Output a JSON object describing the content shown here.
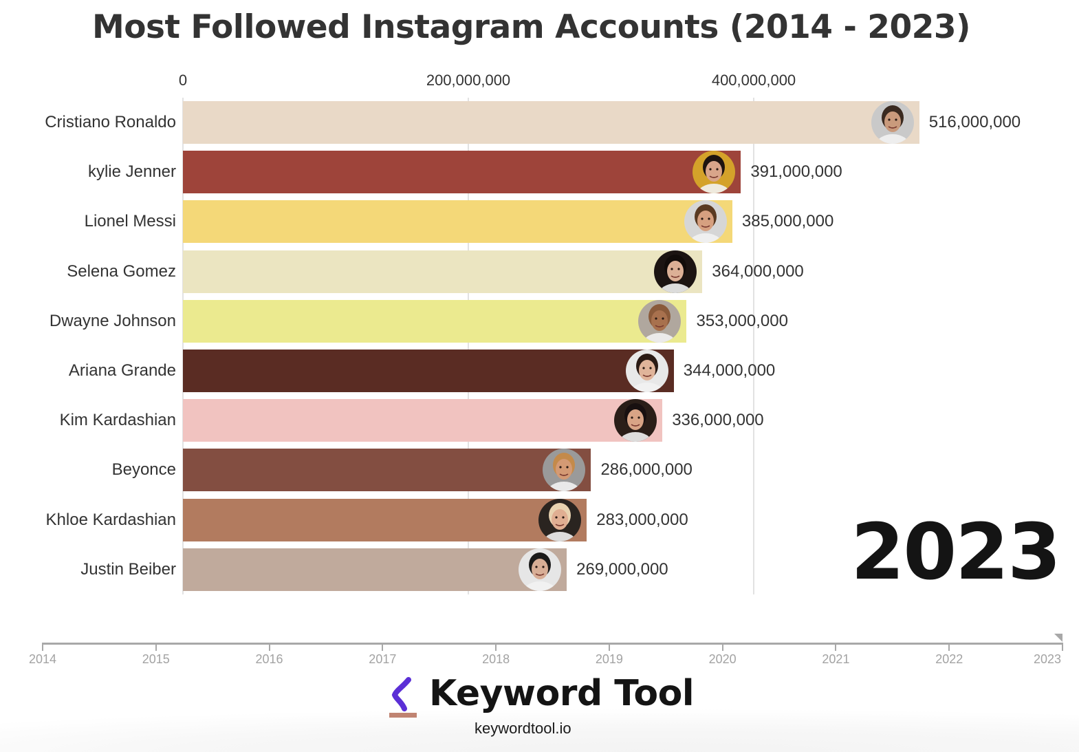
{
  "title": "Most Followed Instagram Accounts (2014 - 2023)",
  "axis": {
    "ticks": [
      {
        "label": "0",
        "value": 0
      },
      {
        "label": "200,000,000",
        "value": 200000000
      },
      {
        "label": "400,000,000",
        "value": 400000000
      }
    ]
  },
  "current_year": "2023",
  "rows": [
    {
      "name": "Cristiano Ronaldo",
      "value_label": "516,000,000",
      "value": 516000000,
      "color": "#e9d9c7",
      "avatar": "cristiano-ronaldo-avatar",
      "avatar_bg": "#c9c9c9",
      "skin": "#c99a7c",
      "hair": "#3a2a20"
    },
    {
      "name": "kylie Jenner",
      "value_label": "391,000,000",
      "value": 391000000,
      "color": "#9e443a",
      "avatar": "kylie-jenner-avatar",
      "avatar_bg": "#d4a22a",
      "skin": "#d9a58a",
      "hair": "#1e1410"
    },
    {
      "name": "Lionel Messi",
      "value_label": "385,000,000",
      "value": 385000000,
      "color": "#f4d878",
      "avatar": "lionel-messi-avatar",
      "avatar_bg": "#d6d6d6",
      "skin": "#d6a080",
      "hair": "#5a3a22"
    },
    {
      "name": "Selena Gomez",
      "value_label": "364,000,000",
      "value": 364000000,
      "color": "#ebe5c1",
      "avatar": "selena-gomez-avatar",
      "avatar_bg": "#1c1412",
      "skin": "#dcb096",
      "hair": "#120c0a"
    },
    {
      "name": "Dwayne Johnson",
      "value_label": "353,000,000",
      "value": 353000000,
      "color": "#ebea8f",
      "avatar": "dwayne-johnson-avatar",
      "avatar_bg": "#b0a79e",
      "skin": "#a8714e",
      "hair": "#8a5a3a"
    },
    {
      "name": "Ariana Grande",
      "value_label": "344,000,000",
      "value": 344000000,
      "color": "#5a2c23",
      "avatar": "ariana-grande-avatar",
      "avatar_bg": "#e8e8e8",
      "skin": "#e0b49a",
      "hair": "#2a1a14"
    },
    {
      "name": "Kim Kardashian",
      "value_label": "336,000,000",
      "value": 336000000,
      "color": "#f1c3c0",
      "avatar": "kim-kardashian-avatar",
      "avatar_bg": "#2a1e18",
      "skin": "#d8a486",
      "hair": "#181010"
    },
    {
      "name": "Beyonce",
      "value_label": "286,000,000",
      "value": 286000000,
      "color": "#834e41",
      "avatar": "beyonce-avatar",
      "avatar_bg": "#9a9a9a",
      "skin": "#d49a74",
      "hair": "#c48a4a"
    },
    {
      "name": "Khloe Kardashian",
      "value_label": "283,000,000",
      "value": 283000000,
      "color": "#b27b5f",
      "avatar": "khloe-kardashian-avatar",
      "avatar_bg": "#2a2420",
      "skin": "#e0ae92",
      "hair": "#e8d2b0"
    },
    {
      "name": "Justin Beiber",
      "value_label": "269,000,000",
      "value": 269000000,
      "color": "#c0aa9c",
      "avatar": "justin-bieber-avatar",
      "avatar_bg": "#e6e6e6",
      "skin": "#d8ae96",
      "hair": "#1a1a1a"
    }
  ],
  "timeline": {
    "years": [
      "2014",
      "2015",
      "2016",
      "2017",
      "2018",
      "2019",
      "2020",
      "2021",
      "2022",
      "2023"
    ],
    "current": "2023"
  },
  "branding": {
    "name": "Keyword Tool",
    "url": "keywordtool.io",
    "mark_color": "#5b2fd6",
    "underline_color": "#c08472"
  },
  "chart_data": {
    "type": "bar",
    "orientation": "horizontal",
    "title": "Most Followed Instagram Accounts (2014 - 2023)",
    "subtitle": "2023",
    "categories": [
      "Cristiano Ronaldo",
      "kylie Jenner",
      "Lionel Messi",
      "Selena Gomez",
      "Dwayne Johnson",
      "Ariana Grande",
      "Kim Kardashian",
      "Beyonce",
      "Khloe Kardashian",
      "Justin Beiber"
    ],
    "values": [
      516000000,
      391000000,
      385000000,
      364000000,
      353000000,
      344000000,
      336000000,
      286000000,
      283000000,
      269000000
    ],
    "colors": [
      "#e9d9c7",
      "#9e443a",
      "#f4d878",
      "#ebe5c1",
      "#ebea8f",
      "#5a2c23",
      "#f1c3c0",
      "#834e41",
      "#b27b5f",
      "#c0aa9c"
    ],
    "xlabel": "",
    "ylabel": "",
    "x_ticks": [
      "0",
      "200,000,000",
      "400,000,000"
    ],
    "xlim": [
      0,
      540000000
    ],
    "grid": true,
    "axis_position": "top",
    "legend": "none",
    "timeline_years": [
      "2014",
      "2015",
      "2016",
      "2017",
      "2018",
      "2019",
      "2020",
      "2021",
      "2022",
      "2023"
    ],
    "current_frame": "2023"
  }
}
